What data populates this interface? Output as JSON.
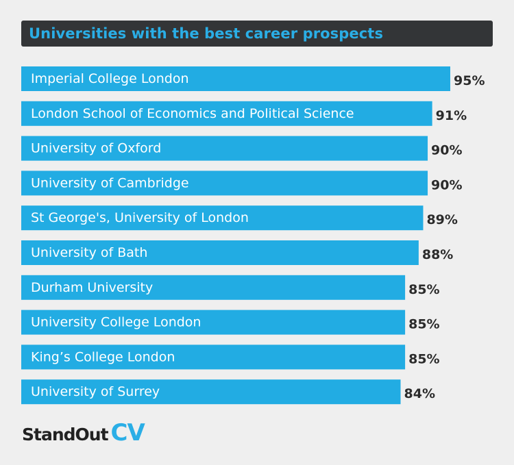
{
  "chart_data": {
    "type": "bar",
    "orientation": "horizontal",
    "title": "Universities with the best career prospects",
    "categories": [
      "Imperial College London",
      "London School of Economics and Political Science",
      "University of Oxford",
      "University of Cambridge",
      "St George's, University of London",
      "University of Bath",
      "Durham University",
      "University College London",
      "King’s College London",
      "University of Surrey"
    ],
    "values": [
      95,
      91,
      90,
      90,
      89,
      88,
      85,
      85,
      85,
      84
    ],
    "value_labels": [
      "95%",
      "91%",
      "90%",
      "90%",
      "89%",
      "88%",
      "85%",
      "85%",
      "85%",
      "84%"
    ],
    "bar_color": "#22ace3",
    "title_bar_color": "#333537",
    "background_color": "#efefef"
  },
  "brand": {
    "name_main": "StandOut",
    "name_accent": "CV"
  }
}
